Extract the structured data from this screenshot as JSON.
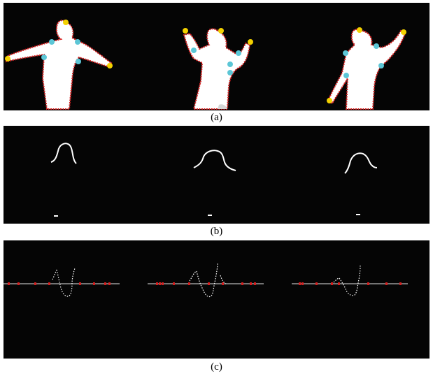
{
  "figure": {
    "caption_a": "(a)",
    "caption_b": "(b)",
    "caption_c": "(c)"
  },
  "panels": {
    "a": {
      "description_marks": [
        "silhouette",
        "contour",
        "extremity-point",
        "joint-point"
      ]
    },
    "b": {
      "description_marks": [
        "head-curve",
        "foot-mark"
      ]
    },
    "c": {
      "description_marks": [
        "axis-line",
        "red-marker",
        "contour-point"
      ]
    }
  },
  "colors": {
    "background": "#050505",
    "silhouette": "#ffffff",
    "contour": "#d81e1e",
    "extremity_point": "#f3d100",
    "joint_point": "#5cc6d6",
    "axis_line": "#9a9a9a",
    "red_marker": "#d61e1e"
  }
}
